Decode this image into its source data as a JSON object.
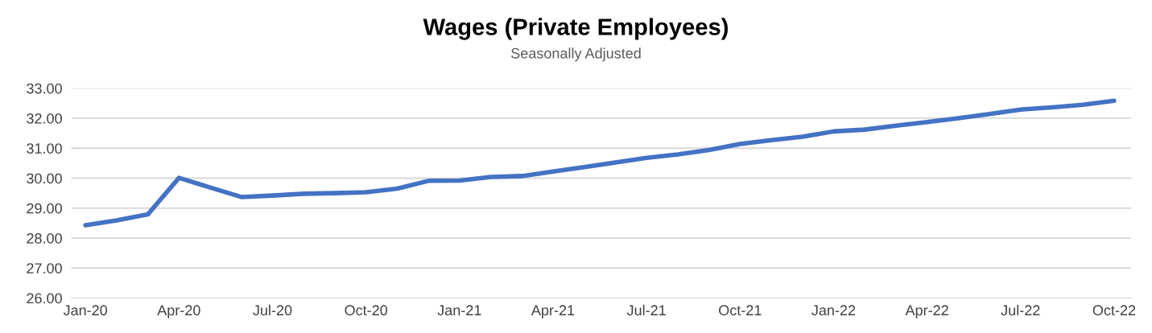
{
  "chart_data": {
    "type": "line",
    "title": "Wages (Private Employees)",
    "subtitle": "Seasonally Adjusted",
    "categories": [
      "Jan-20",
      null,
      null,
      "Apr-20",
      null,
      null,
      "Jul-20",
      null,
      null,
      "Oct-20",
      null,
      null,
      "Jan-21",
      null,
      null,
      "Apr-21",
      null,
      null,
      "Jul-21",
      null,
      null,
      "Oct-21",
      null,
      null,
      "Jan-22",
      null,
      null,
      "Apr-22",
      null,
      null,
      "Jul-22",
      null,
      null,
      "Oct-22"
    ],
    "series": [
      {
        "color": "#4472c4",
        "values": [
          28.43,
          28.59,
          28.79,
          30.01,
          29.69,
          29.37,
          29.42,
          29.48,
          29.5,
          29.53,
          29.65,
          29.91,
          29.92,
          30.04,
          30.07,
          30.22,
          30.37,
          30.52,
          30.68,
          30.79,
          30.94,
          31.14,
          31.27,
          31.38,
          31.56,
          31.62,
          31.75,
          31.87,
          32.0,
          32.14,
          32.29,
          32.36,
          32.45,
          32.58
        ]
      }
    ],
    "ylim": [
      26,
      33
    ],
    "yticks": [
      {
        "value": 26,
        "label": "26.00"
      },
      {
        "value": 27,
        "label": "27.00"
      },
      {
        "value": 28,
        "label": "28.00"
      },
      {
        "value": 29,
        "label": "29.00"
      },
      {
        "value": 30,
        "label": "30.00"
      },
      {
        "value": 31,
        "label": "31.00"
      },
      {
        "value": 32,
        "label": "32.00"
      },
      {
        "value": 33,
        "label": "33.00"
      }
    ],
    "grid": "y",
    "marker": "none",
    "line_style": "solid"
  }
}
